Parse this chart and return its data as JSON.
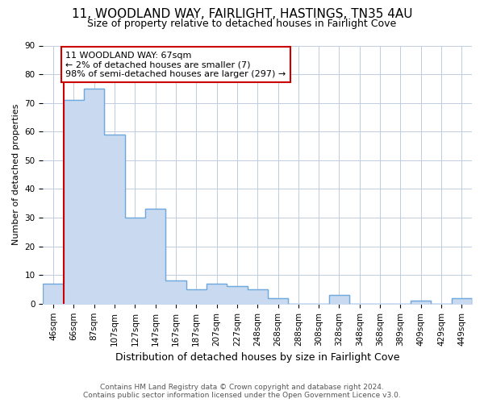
{
  "title1": "11, WOODLAND WAY, FAIRLIGHT, HASTINGS, TN35 4AU",
  "title2": "Size of property relative to detached houses in Fairlight Cove",
  "xlabel": "Distribution of detached houses by size in Fairlight Cove",
  "ylabel": "Number of detached properties",
  "footer1": "Contains HM Land Registry data © Crown copyright and database right 2024.",
  "footer2": "Contains public sector information licensed under the Open Government Licence v3.0.",
  "annotation_line1": "11 WOODLAND WAY: 67sqm",
  "annotation_line2": "← 2% of detached houses are smaller (7)",
  "annotation_line3": "98% of semi-detached houses are larger (297) →",
  "categories": [
    "46sqm",
    "66sqm",
    "87sqm",
    "107sqm",
    "127sqm",
    "147sqm",
    "167sqm",
    "187sqm",
    "207sqm",
    "227sqm",
    "248sqm",
    "268sqm",
    "288sqm",
    "308sqm",
    "328sqm",
    "348sqm",
    "368sqm",
    "389sqm",
    "409sqm",
    "429sqm",
    "449sqm"
  ],
  "values": [
    7,
    71,
    75,
    59,
    30,
    33,
    8,
    5,
    7,
    6,
    5,
    2,
    0,
    0,
    3,
    0,
    0,
    0,
    1,
    0,
    2
  ],
  "bar_fill_color": "#c9daf0",
  "bar_edge_color": "#6fa8dc",
  "ylim": [
    0,
    90
  ],
  "yticks": [
    0,
    10,
    20,
    30,
    40,
    50,
    60,
    70,
    80,
    90
  ],
  "vline_color": "#cc0000",
  "vline_x_index": 1,
  "annotation_box_color": "#cc0000",
  "background_color": "#ffffff",
  "grid_color": "#c0cce0",
  "title1_fontsize": 11,
  "title2_fontsize": 9,
  "ylabel_fontsize": 8,
  "xlabel_fontsize": 9,
  "tick_fontsize": 7.5,
  "footer_fontsize": 6.5,
  "footer_color": "#555555"
}
